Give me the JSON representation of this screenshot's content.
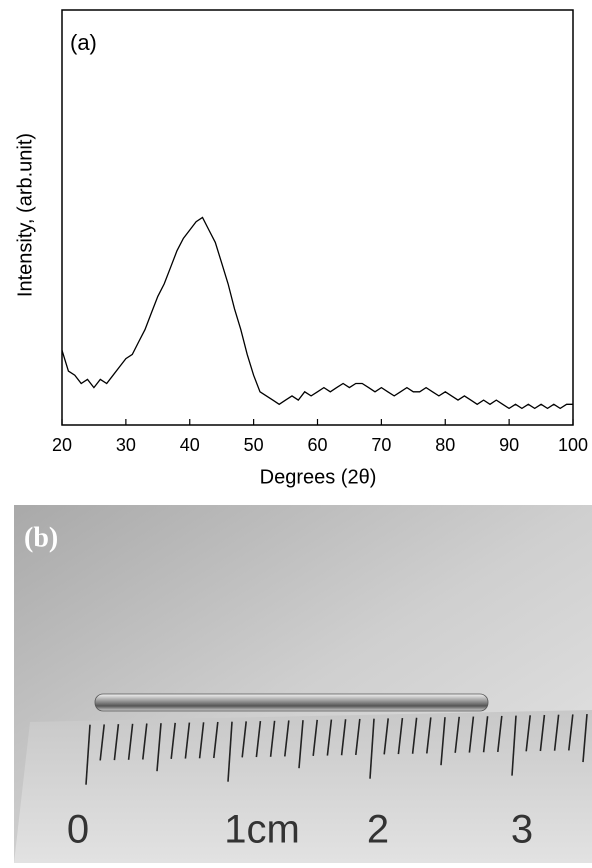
{
  "chart_data": {
    "type": "line",
    "panel_label": "(a)",
    "x_label": "Degrees (2θ)",
    "y_label": "Intensity, (arb.unit)",
    "color": "#000000",
    "xlim": [
      20,
      100
    ],
    "xticks": [
      20,
      30,
      40,
      50,
      60,
      70,
      80,
      90,
      100
    ],
    "ylim": [
      0,
      100
    ],
    "x": [
      20,
      21,
      22,
      23,
      24,
      25,
      26,
      27,
      28,
      29,
      30,
      31,
      32,
      33,
      34,
      35,
      36,
      37,
      38,
      39,
      40,
      41,
      42,
      43,
      44,
      45,
      46,
      47,
      48,
      49,
      50,
      51,
      52,
      53,
      54,
      55,
      56,
      57,
      58,
      59,
      60,
      61,
      62,
      63,
      64,
      65,
      66,
      67,
      68,
      69,
      70,
      71,
      72,
      73,
      74,
      75,
      76,
      77,
      78,
      79,
      80,
      81,
      82,
      83,
      84,
      85,
      86,
      87,
      88,
      89,
      90,
      91,
      92,
      93,
      94,
      95,
      96,
      97,
      98,
      99,
      100
    ],
    "values": [
      18,
      13,
      12,
      10,
      11,
      9,
      11,
      10,
      12,
      14,
      16,
      17,
      20,
      23,
      27,
      31,
      34,
      38,
      42,
      45,
      47,
      49,
      50,
      47,
      44,
      39,
      34,
      28,
      23,
      17,
      12,
      8,
      7,
      6,
      5,
      6,
      7,
      6,
      8,
      7,
      8,
      9,
      8,
      9,
      10,
      9,
      10,
      10,
      9,
      8,
      9,
      8,
      7,
      8,
      9,
      8,
      8,
      9,
      8,
      7,
      8,
      7,
      6,
      7,
      6,
      5,
      6,
      5,
      6,
      5,
      4,
      5,
      4,
      5,
      4,
      5,
      4,
      5,
      4,
      5,
      5
    ]
  },
  "photo": {
    "panel_label": "(b)",
    "ruler_labels": [
      "0",
      "1cm",
      "2",
      "3"
    ]
  }
}
